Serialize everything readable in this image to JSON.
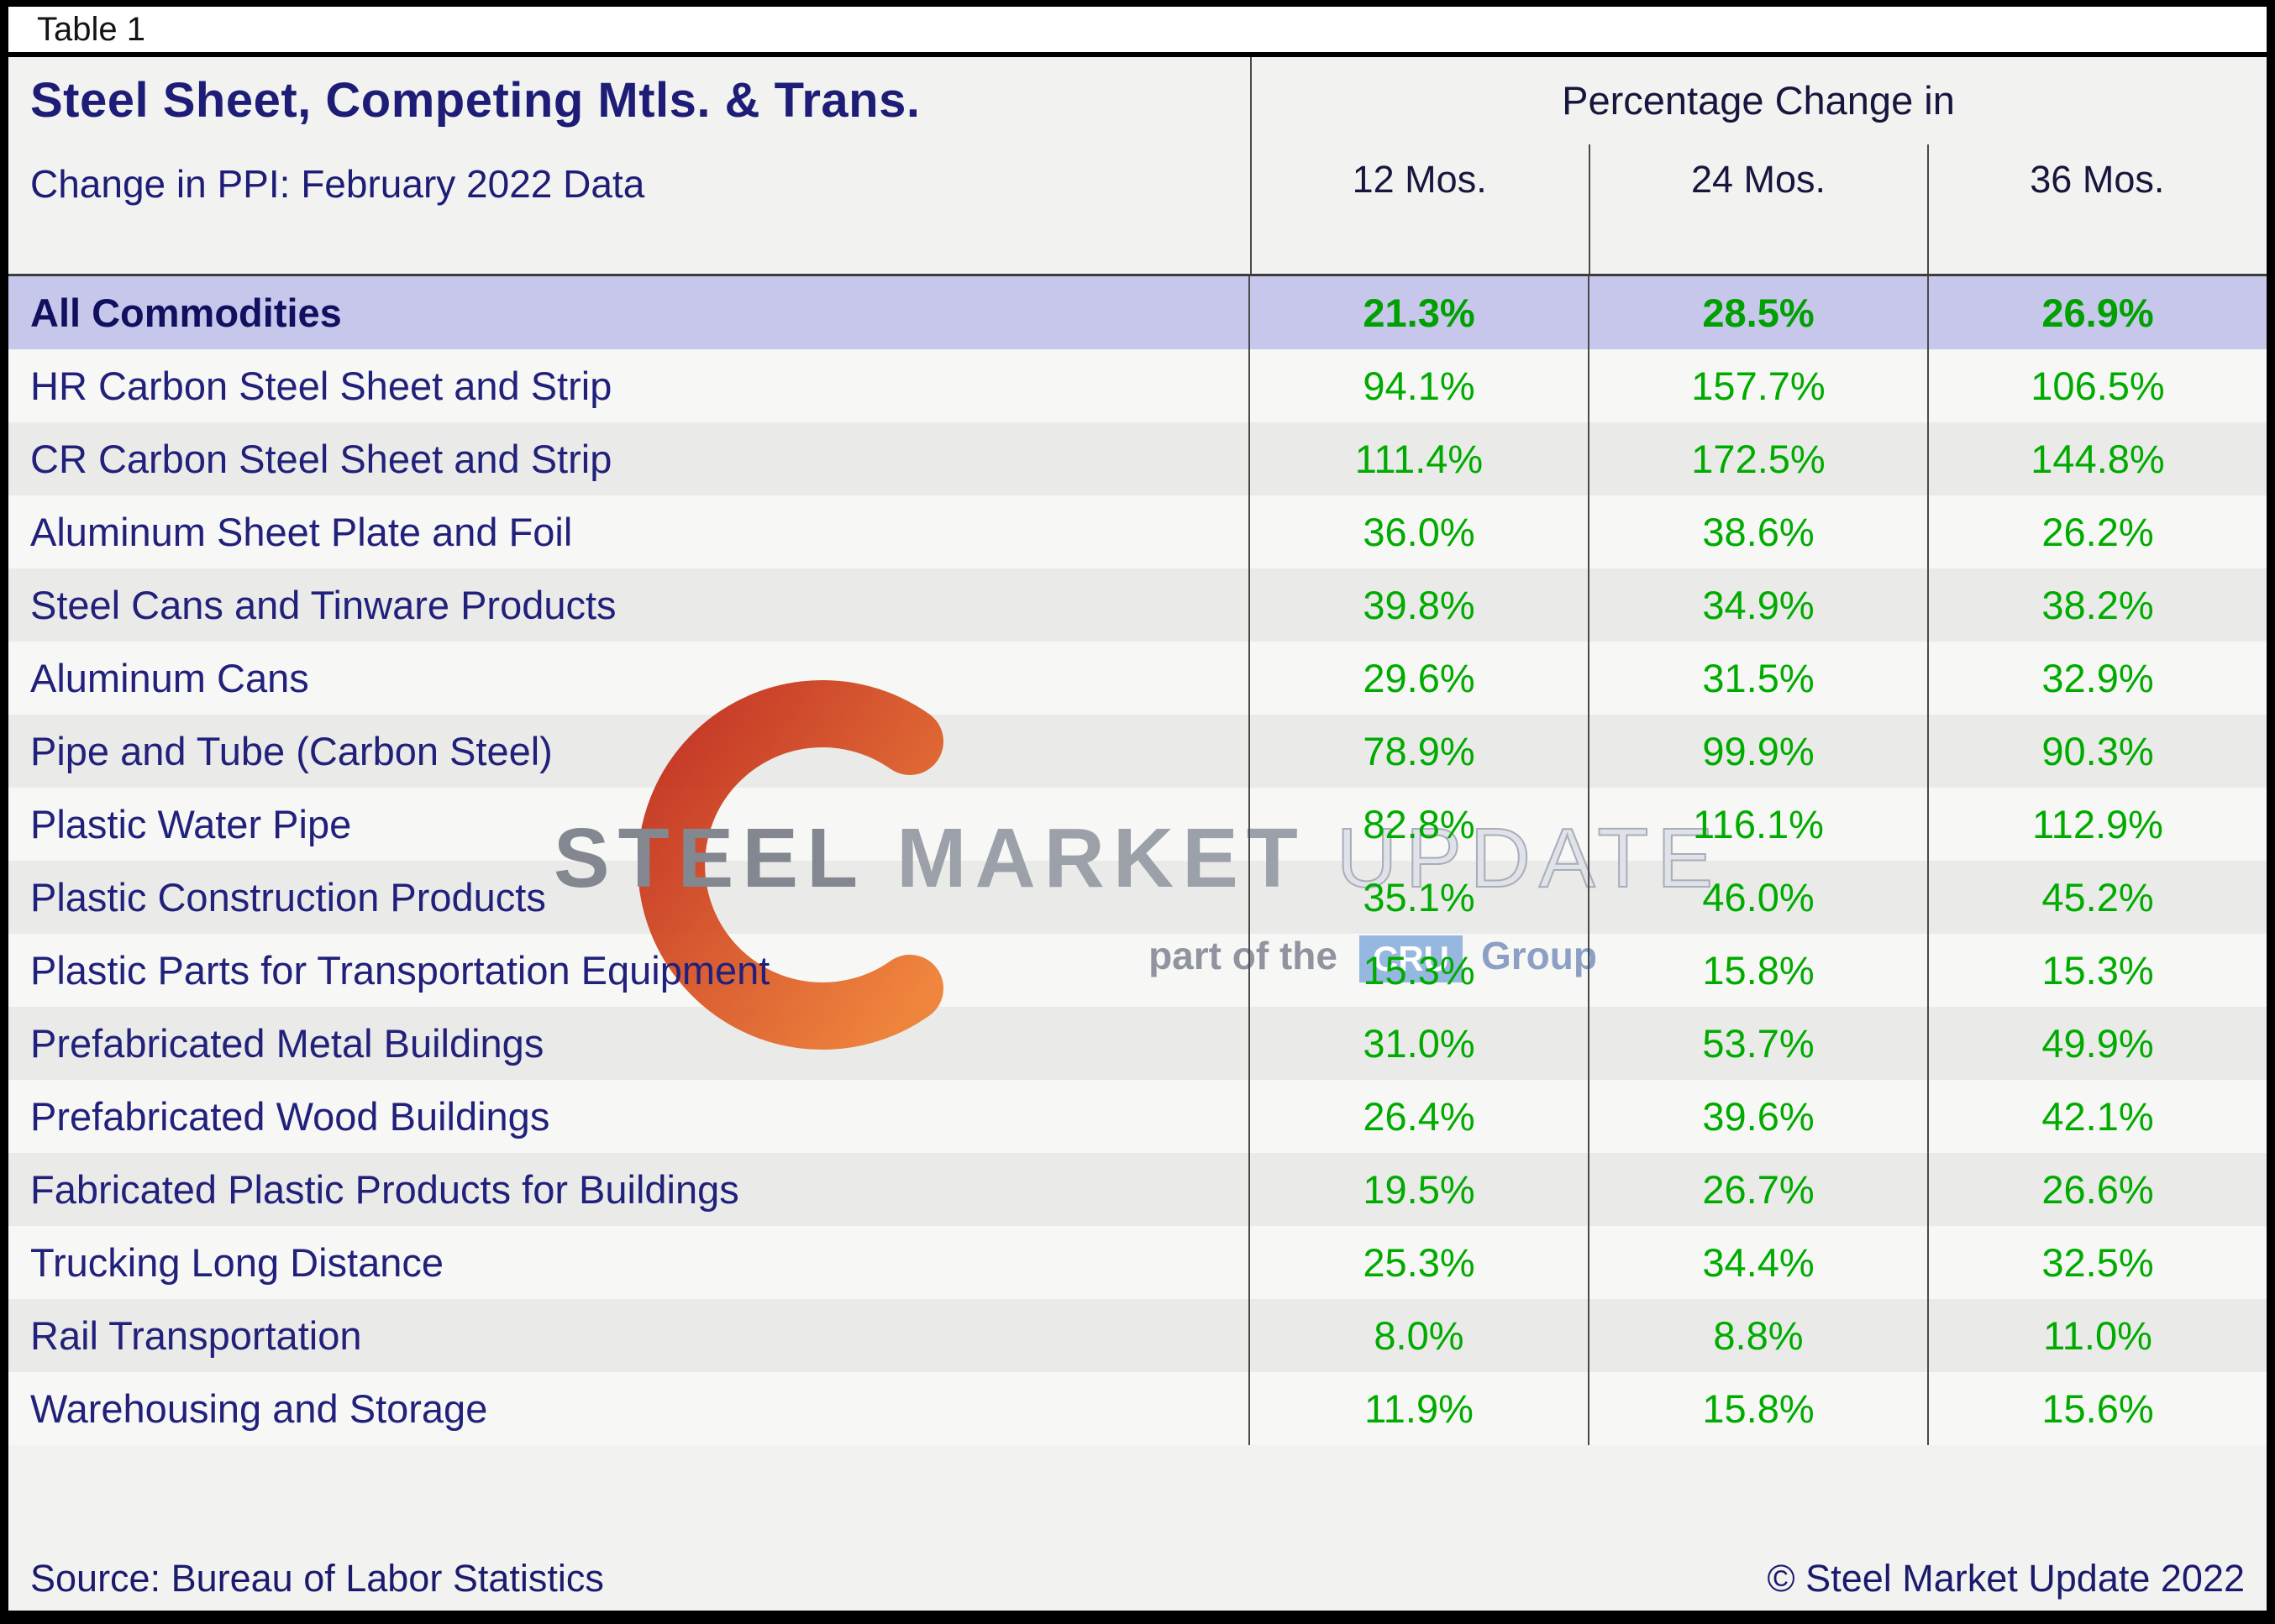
{
  "titlebar": {
    "label": "Table 1"
  },
  "chart_data": {
    "type": "table",
    "title": "Steel Sheet, Competing Mtls. & Trans.",
    "subtitle": "Change in PPI: February 2022 Data",
    "column_group_header": "Percentage Change in",
    "columns": [
      "12 Mos.",
      "24 Mos.",
      "36 Mos."
    ],
    "unit": "%",
    "rows": [
      {
        "label": "All Commodities",
        "values": [
          21.3,
          28.5,
          26.9
        ],
        "highlight": true
      },
      {
        "label": "HR Carbon Steel Sheet and Strip",
        "values": [
          94.1,
          157.7,
          106.5
        ]
      },
      {
        "label": "CR Carbon Steel Sheet and Strip",
        "values": [
          111.4,
          172.5,
          144.8
        ]
      },
      {
        "label": "Aluminum Sheet Plate and Foil",
        "values": [
          36.0,
          38.6,
          26.2
        ]
      },
      {
        "label": "Steel Cans and Tinware Products",
        "values": [
          39.8,
          34.9,
          38.2
        ]
      },
      {
        "label": "Aluminum Cans",
        "values": [
          29.6,
          31.5,
          32.9
        ]
      },
      {
        "label": "Pipe and Tube (Carbon Steel)",
        "values": [
          78.9,
          99.9,
          90.3
        ]
      },
      {
        "label": "Plastic Water Pipe",
        "values": [
          82.8,
          116.1,
          112.9
        ]
      },
      {
        "label": "Plastic Construction Products",
        "values": [
          35.1,
          46.0,
          45.2
        ]
      },
      {
        "label": "Plastic Parts for Transportation Equipment",
        "values": [
          15.3,
          15.8,
          15.3
        ]
      },
      {
        "label": "Prefabricated Metal Buildings",
        "values": [
          31.0,
          53.7,
          49.9
        ]
      },
      {
        "label": "Prefabricated Wood Buildings",
        "values": [
          26.4,
          39.6,
          42.1
        ]
      },
      {
        "label": "Fabricated Plastic Products for Buildings",
        "values": [
          19.5,
          26.7,
          26.6
        ]
      },
      {
        "label": "Trucking Long Distance",
        "values": [
          25.3,
          34.4,
          32.5
        ]
      },
      {
        "label": "Rail Transportation",
        "values": [
          8.0,
          8.8,
          11.0
        ]
      },
      {
        "label": "Warehousing and Storage",
        "values": [
          11.9,
          15.8,
          15.6
        ]
      }
    ]
  },
  "watermark": {
    "word1": "STEEL",
    "word2": "MARKET",
    "word3": "UPDATE",
    "tagline_prefix": "part of the",
    "tagline_logo": "CRU",
    "tagline_suffix": "Group"
  },
  "footer": {
    "source": "Source: Bureau of Labor Statistics",
    "copyright": "© Steel Market Update 2022"
  },
  "colors": {
    "value_green": "#00AB00",
    "heading_navy": "#1D1D78",
    "highlight_row_bg": "#C7C7EC",
    "column_line": "#4A4A4A",
    "crescent_red": "#C02615",
    "crescent_orange": "#EF7C2E",
    "cru_blue": "#85ABDA"
  }
}
